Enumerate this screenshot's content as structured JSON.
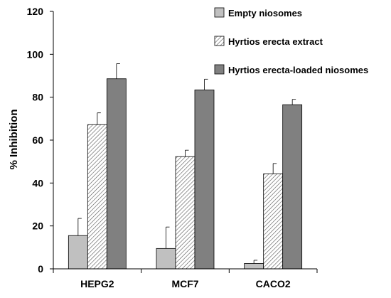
{
  "chart_data": {
    "type": "bar",
    "title": "",
    "xlabel": "",
    "ylabel": "% Inhibition",
    "ylim": [
      0,
      120
    ],
    "yticks": [
      0,
      20,
      40,
      60,
      80,
      100,
      120
    ],
    "categories": [
      "HEPG2",
      "MCF7",
      "CACO2"
    ],
    "grid": false,
    "legend_position": "top-right",
    "series": [
      {
        "name": "Empty niosomes",
        "fill": "#c0c0c0",
        "pattern": "solid",
        "values": [
          15.5,
          9.5,
          2.5
        ],
        "errors": [
          8,
          10,
          1.5
        ]
      },
      {
        "name": "Hyrtios erecta extract",
        "fill": "#ffffff",
        "pattern": "hatch",
        "values": [
          67.2,
          52.3,
          44.3
        ],
        "errors": [
          5.5,
          3,
          4.8
        ]
      },
      {
        "name": "Hyrtios erecta-loaded niosomes",
        "fill": "#808080",
        "pattern": "solid",
        "values": [
          88.6,
          83.4,
          76.5
        ],
        "errors": [
          7,
          5,
          2.5
        ]
      }
    ]
  }
}
